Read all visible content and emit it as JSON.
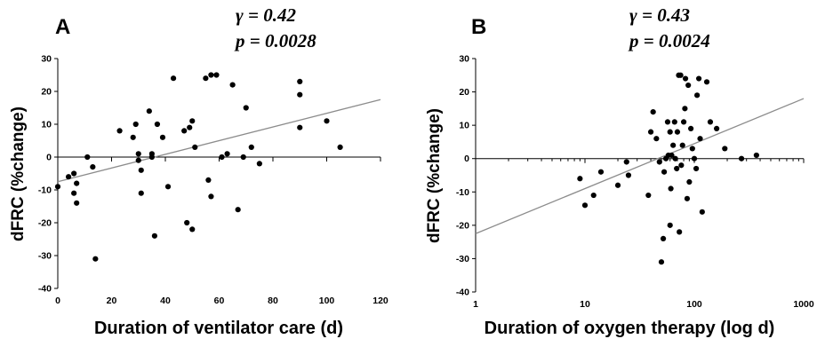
{
  "chart_data": [
    {
      "type": "scatter",
      "panel": "A",
      "stats": {
        "gamma": "γ = 0.42",
        "p": "p = 0.0028"
      },
      "xlabel": "Duration of ventilator care (d)",
      "ylabel": "dFRC (%change)",
      "xlim": [
        0,
        120
      ],
      "ylim": [
        -40,
        30
      ],
      "x_scale": "linear",
      "x_ticks": [
        0,
        20,
        40,
        60,
        80,
        100,
        120
      ],
      "y_ticks": [
        30,
        20,
        10,
        0,
        -10,
        -20,
        -30,
        -40
      ],
      "trendline": {
        "x": [
          0,
          120
        ],
        "y": [
          -7.5,
          17.5
        ]
      },
      "points": [
        [
          0,
          -9
        ],
        [
          4,
          -6
        ],
        [
          6,
          -5
        ],
        [
          6,
          -11
        ],
        [
          7,
          -8
        ],
        [
          7,
          -14
        ],
        [
          11,
          0
        ],
        [
          13,
          -3
        ],
        [
          14,
          -31
        ],
        [
          23,
          8
        ],
        [
          28,
          6
        ],
        [
          29,
          10
        ],
        [
          30,
          1
        ],
        [
          30,
          -1
        ],
        [
          31,
          -4
        ],
        [
          31,
          -11
        ],
        [
          34,
          14
        ],
        [
          35,
          0
        ],
        [
          35,
          1
        ],
        [
          36,
          -24
        ],
        [
          37,
          10
        ],
        [
          39,
          6
        ],
        [
          41,
          -9
        ],
        [
          43,
          24
        ],
        [
          47,
          8
        ],
        [
          48,
          -20
        ],
        [
          49,
          9
        ],
        [
          50,
          11
        ],
        [
          50,
          -22
        ],
        [
          51,
          3
        ],
        [
          55,
          24
        ],
        [
          56,
          -7
        ],
        [
          57,
          25
        ],
        [
          57,
          -12
        ],
        [
          59,
          25
        ],
        [
          61,
          0
        ],
        [
          63,
          1
        ],
        [
          65,
          22
        ],
        [
          67,
          -16
        ],
        [
          69,
          0
        ],
        [
          70,
          15
        ],
        [
          72,
          3
        ],
        [
          75,
          -2
        ],
        [
          90,
          23
        ],
        [
          90,
          19
        ],
        [
          90,
          9
        ],
        [
          100,
          11
        ],
        [
          105,
          3
        ]
      ]
    },
    {
      "type": "scatter",
      "panel": "B",
      "stats": {
        "gamma": "γ = 0.43",
        "p": "p = 0.0024"
      },
      "xlabel": "Duration of oxygen therapy (log d)",
      "ylabel": "dFRC (%change)",
      "xlim": [
        1,
        1000
      ],
      "ylim": [
        -40,
        30
      ],
      "x_scale": "log",
      "x_ticks": [
        1,
        10,
        100,
        1000
      ],
      "y_ticks": [
        30,
        20,
        10,
        0,
        -10,
        -20,
        -30,
        -40
      ],
      "trendline": {
        "x": [
          1,
          1000
        ],
        "y": [
          -22.5,
          18
        ]
      },
      "points": [
        [
          9,
          -6
        ],
        [
          10,
          -14
        ],
        [
          12,
          -11
        ],
        [
          14,
          -4
        ],
        [
          20,
          -8
        ],
        [
          24,
          -1
        ],
        [
          25,
          -5
        ],
        [
          38,
          -11
        ],
        [
          40,
          8
        ],
        [
          42,
          14
        ],
        [
          45,
          6
        ],
        [
          48,
          -1
        ],
        [
          50,
          -31
        ],
        [
          52,
          -24
        ],
        [
          53,
          -4
        ],
        [
          55,
          0
        ],
        [
          57,
          11
        ],
        [
          58,
          1
        ],
        [
          60,
          8
        ],
        [
          60,
          -20
        ],
        [
          61,
          -9
        ],
        [
          62,
          1
        ],
        [
          64,
          4
        ],
        [
          66,
          11
        ],
        [
          67,
          0
        ],
        [
          69,
          -3
        ],
        [
          70,
          8
        ],
        [
          72,
          25
        ],
        [
          73,
          -22
        ],
        [
          75,
          25
        ],
        [
          76,
          -2
        ],
        [
          78,
          4
        ],
        [
          80,
          11
        ],
        [
          82,
          15
        ],
        [
          83,
          24
        ],
        [
          86,
          -12
        ],
        [
          88,
          22
        ],
        [
          90,
          -7
        ],
        [
          93,
          9
        ],
        [
          96,
          3
        ],
        [
          100,
          0
        ],
        [
          104,
          -3
        ],
        [
          106,
          19
        ],
        [
          110,
          24
        ],
        [
          113,
          6
        ],
        [
          118,
          -16
        ],
        [
          130,
          23
        ],
        [
          140,
          11
        ],
        [
          160,
          9
        ],
        [
          190,
          3
        ],
        [
          270,
          0
        ],
        [
          370,
          1
        ]
      ]
    }
  ]
}
